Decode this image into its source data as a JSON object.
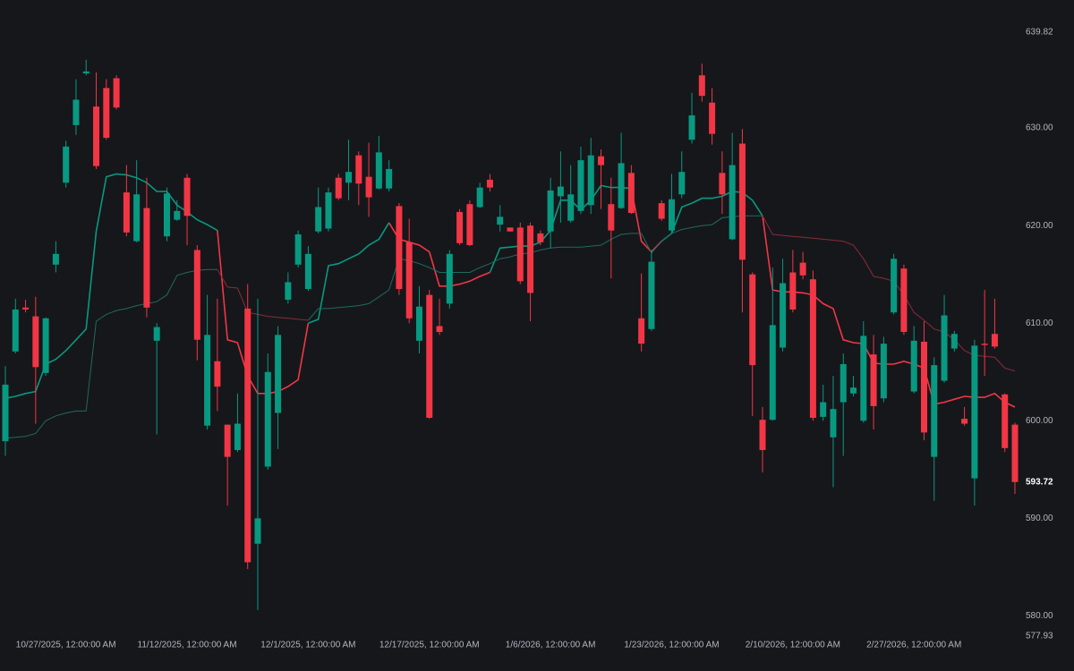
{
  "chart_data": {
    "type": "candlestick",
    "up_color": "#089981",
    "down_color": "#f23645",
    "grid": false,
    "categories": [
      null,
      null,
      null,
      null,
      null,
      null,
      "10/27/2025, 12:00:00 AM",
      null,
      null,
      null,
      null,
      null,
      null,
      null,
      null,
      null,
      null,
      null,
      "11/12/2025, 12:00:00 AM",
      null,
      null,
      null,
      null,
      null,
      null,
      null,
      null,
      null,
      null,
      null,
      "12/1/2025, 12:00:00 AM",
      null,
      null,
      null,
      null,
      null,
      null,
      null,
      null,
      null,
      null,
      null,
      "12/17/2025, 12:00:00 AM",
      null,
      null,
      null,
      null,
      null,
      null,
      null,
      null,
      null,
      null,
      null,
      "1/6/2026, 12:00:00 AM",
      null,
      null,
      null,
      null,
      null,
      null,
      null,
      null,
      null,
      null,
      null,
      "1/23/2026, 12:00:00 AM",
      null,
      null,
      null,
      null,
      null,
      null,
      null,
      null,
      null,
      null,
      null,
      "2/10/2026, 12:00:00 AM",
      null,
      null,
      null,
      null,
      null,
      null,
      null,
      null,
      null,
      null,
      null,
      "2/27/2026, 12:00:00 AM",
      null,
      null,
      null,
      null,
      null,
      null,
      null,
      null,
      null,
      null
    ],
    "open": [
      597.9,
      607.1,
      611.6,
      610.7,
      604.9,
      616.0,
      624.4,
      630.3,
      635.6,
      632.2,
      634.1,
      635.1,
      623.4,
      618.4,
      621.8,
      608.2,
      618.9,
      620.6,
      624.9,
      617.5,
      599.5,
      606.1,
      599.6,
      597.0,
      611.5,
      587.4,
      595.3,
      600.8,
      612.4,
      616.0,
      613.5,
      619.4,
      619.7,
      624.9,
      624.4,
      627.2,
      625.0,
      623.8,
      623.8,
      622.0,
      618.3,
      608.2,
      612.9,
      609.7,
      612.0,
      621.4,
      622.2,
      621.9,
      624.7,
      620.1,
      619.8,
      619.8,
      620.0,
      619.2,
      619.4,
      623.0,
      620.5,
      621.5,
      622.1,
      627.1,
      622.2,
      621.8,
      625.4,
      610.5,
      609.4,
      622.3,
      619.5,
      623.2,
      628.8,
      635.4,
      632.6,
      625.4,
      618.6,
      628.4,
      615.0,
      600.1,
      600.1,
      607.5,
      615.2,
      616.2,
      614.5,
      600.4,
      598.3,
      601.9,
      602.8,
      600.0,
      606.8,
      602.3,
      611.1,
      615.6,
      603.0,
      608.1,
      596.3,
      604.1,
      607.4,
      600.2,
      594.1,
      607.9,
      608.9,
      602.7,
      599.6
    ],
    "high": [
      605.6,
      612.5,
      612.4,
      612.7,
      610.6,
      618.4,
      628.7,
      635.0,
      637.0,
      635.7,
      635.0,
      635.4,
      626.2,
      626.7,
      624.9,
      610.0,
      623.9,
      622.6,
      625.3,
      618.0,
      612.9,
      612.5,
      599.6,
      602.8,
      614.0,
      612.5,
      606.9,
      609.7,
      615.2,
      619.5,
      617.9,
      623.9,
      623.9,
      625.3,
      628.8,
      627.6,
      628.5,
      629.2,
      626.7,
      622.3,
      620.7,
      613.8,
      613.4,
      612.5,
      617.5,
      621.7,
      622.6,
      624.4,
      625.3,
      622.1,
      619.8,
      620.3,
      620.3,
      619.5,
      624.9,
      627.6,
      626.2,
      628.1,
      629.0,
      627.8,
      624.9,
      629.5,
      626.2,
      615.1,
      617.5,
      622.6,
      625.3,
      627.6,
      633.6,
      636.6,
      634.1,
      627.6,
      629.5,
      629.9,
      615.2,
      601.4,
      615.7,
      616.6,
      617.5,
      617.3,
      615.4,
      603.7,
      604.6,
      606.9,
      604.6,
      610.2,
      608.8,
      608.6,
      617.1,
      616.0,
      609.7,
      610.2,
      606.5,
      612.9,
      609.2,
      601.4,
      608.3,
      613.4,
      612.5,
      602.8,
      599.8
    ],
    "low": [
      596.4,
      606.9,
      611.1,
      599.7,
      604.6,
      615.2,
      623.9,
      629.3,
      635.4,
      625.8,
      628.8,
      631.9,
      618.9,
      618.3,
      610.6,
      598.6,
      618.4,
      620.5,
      618.0,
      606.2,
      599.1,
      601.0,
      591.3,
      596.8,
      584.8,
      580.6,
      595.0,
      597.1,
      612.0,
      615.7,
      613.3,
      619.2,
      619.4,
      622.6,
      622.6,
      622.1,
      620.9,
      623.7,
      623.5,
      612.9,
      610.0,
      606.9,
      600.2,
      608.8,
      611.5,
      618.0,
      617.9,
      621.8,
      623.5,
      619.4,
      619.4,
      614.0,
      610.2,
      618.0,
      617.7,
      620.3,
      620.3,
      621.2,
      621.2,
      621.7,
      614.6,
      621.7,
      621.2,
      607.1,
      609.2,
      620.5,
      619.2,
      622.8,
      628.4,
      632.7,
      628.3,
      621.2,
      618.5,
      611.1,
      600.5,
      594.7,
      600.0,
      607.1,
      611.1,
      614.5,
      600.0,
      600.0,
      593.2,
      596.4,
      602.5,
      599.8,
      599.1,
      601.9,
      610.9,
      608.8,
      602.8,
      598.0,
      591.8,
      603.9,
      607.1,
      599.5,
      591.3,
      604.6,
      607.4,
      596.8,
      592.5
    ],
    "close": [
      603.7,
      611.4,
      611.4,
      605.5,
      610.5,
      617.1,
      628.1,
      632.9,
      635.8,
      626.1,
      629.0,
      632.1,
      619.3,
      623.2,
      611.6,
      609.6,
      623.3,
      621.5,
      621.0,
      608.3,
      608.8,
      603.5,
      596.3,
      599.7,
      585.5,
      590.0,
      605.0,
      608.8,
      614.2,
      619.1,
      617.1,
      621.9,
      623.4,
      622.8,
      625.5,
      624.3,
      622.9,
      627.5,
      625.8,
      613.5,
      610.5,
      611.7,
      600.3,
      609.1,
      617.1,
      618.2,
      618.0,
      623.9,
      623.9,
      620.9,
      619.4,
      614.3,
      613.1,
      618.3,
      623.6,
      624.0,
      623.2,
      626.7,
      627.2,
      626.2,
      619.5,
      626.4,
      621.3,
      607.9,
      616.3,
      620.7,
      622.7,
      625.5,
      631.3,
      633.3,
      629.4,
      623.2,
      626.2,
      616.5,
      605.7,
      597.0,
      609.8,
      614.1,
      611.4,
      614.9,
      600.3,
      601.9,
      601.2,
      605.8,
      603.4,
      608.7,
      601.5,
      607.9,
      616.6,
      609.1,
      608.2,
      598.8,
      605.7,
      610.8,
      608.9,
      599.7,
      607.7,
      607.8,
      607.6,
      597.2,
      593.72
    ],
    "series": [
      {
        "color": "#089981",
        "width": 1.6,
        "values": [
          602.3,
          602.5,
          602.8,
          603.0,
          605.8,
          606.3,
          607.2,
          608.3,
          609.4,
          619.4,
          625.0,
          625.3,
          625.2,
          624.9,
          624.4,
          623.5,
          623.5,
          622.1,
          621.4,
          620.6,
          620.1,
          619.5,
          null,
          null,
          null,
          null,
          null,
          null,
          null,
          null,
          610.0,
          610.4,
          615.9,
          616.1,
          616.6,
          617.1,
          618.0,
          618.6,
          620.3,
          null,
          null,
          null,
          null,
          null,
          null,
          null,
          null,
          null,
          615.2,
          617.7,
          617.8,
          617.9,
          617.9,
          618.3,
          619.5,
          622.6,
          622.6,
          621.6,
          622.6,
          624.1,
          623.9,
          623.9,
          623.8,
          null,
          null,
          618.4,
          619.2,
          621.9,
          622.3,
          622.8,
          622.8,
          623.0,
          623.5,
          623.4,
          622.6,
          621.0,
          null,
          null,
          null,
          null,
          null,
          null,
          null,
          null,
          null,
          null,
          null,
          null,
          null,
          null,
          null,
          null,
          null,
          null,
          null,
          null,
          null,
          null,
          null,
          null,
          null
        ]
      },
      {
        "color": "#f23645",
        "width": 1.6,
        "values": [
          null,
          null,
          null,
          null,
          null,
          null,
          null,
          null,
          null,
          null,
          null,
          null,
          null,
          null,
          null,
          null,
          null,
          null,
          null,
          null,
          null,
          619.5,
          608.3,
          608.0,
          604.6,
          602.8,
          602.8,
          603.0,
          603.5,
          604.2,
          610.0,
          null,
          null,
          null,
          null,
          null,
          null,
          null,
          620.3,
          618.6,
          618.3,
          618.0,
          617.3,
          613.8,
          613.8,
          614.0,
          614.3,
          614.8,
          615.2,
          null,
          null,
          null,
          null,
          null,
          null,
          null,
          null,
          null,
          null,
          null,
          null,
          null,
          623.8,
          618.4,
          617.3,
          618.4,
          null,
          null,
          null,
          null,
          null,
          null,
          null,
          null,
          null,
          621.0,
          613.4,
          613.2,
          613.2,
          613.1,
          612.9,
          612.0,
          611.5,
          608.3,
          608.0,
          607.9,
          605.9,
          605.8,
          605.8,
          606.1,
          605.8,
          605.4,
          601.7,
          601.9,
          602.2,
          602.5,
          602.4,
          602.4,
          602.8,
          601.9,
          601.4
        ]
      },
      {
        "color": "#1d6b60",
        "width": 1,
        "values": [
          598.2,
          598.3,
          598.4,
          598.7,
          600.0,
          600.5,
          600.8,
          601.0,
          601.0,
          610.2,
          610.9,
          611.3,
          611.5,
          611.8,
          612.0,
          612.2,
          612.9,
          614.9,
          615.2,
          615.4,
          615.5,
          615.5,
          null,
          null,
          null,
          null,
          null,
          null,
          null,
          null,
          610.3,
          611.5,
          611.5,
          611.6,
          611.7,
          611.8,
          612.0,
          612.7,
          613.4,
          616.6,
          616.4,
          616.1,
          615.7,
          615.2,
          615.2,
          615.2,
          615.2,
          615.7,
          616.1,
          616.6,
          616.8,
          617.1,
          617.2,
          617.5,
          617.7,
          617.8,
          617.8,
          617.8,
          617.9,
          618.0,
          618.6,
          619.1,
          619.2,
          619.2,
          617.2,
          618.4,
          619.2,
          619.6,
          619.8,
          620.0,
          620.1,
          620.8,
          620.9,
          621.0,
          621.0,
          621.0,
          null,
          null,
          null,
          null,
          null,
          null,
          null,
          null,
          null,
          null,
          null,
          null,
          null,
          null,
          null,
          null,
          null,
          null,
          null,
          null,
          null,
          null,
          null,
          null,
          null
        ]
      },
      {
        "color": "#8a2c35",
        "width": 1,
        "values": [
          null,
          null,
          null,
          null,
          null,
          null,
          null,
          null,
          null,
          null,
          null,
          null,
          null,
          null,
          null,
          null,
          null,
          null,
          null,
          null,
          null,
          615.5,
          613.7,
          613.6,
          611.1,
          610.9,
          610.7,
          610.6,
          610.5,
          610.4,
          610.3,
          null,
          null,
          null,
          null,
          null,
          null,
          null,
          null,
          null,
          null,
          null,
          null,
          null,
          null,
          null,
          null,
          null,
          null,
          null,
          null,
          null,
          null,
          null,
          null,
          null,
          null,
          null,
          null,
          null,
          null,
          null,
          null,
          null,
          null,
          null,
          null,
          null,
          null,
          null,
          null,
          null,
          null,
          null,
          null,
          621.0,
          619.1,
          619.0,
          618.9,
          618.8,
          618.7,
          618.6,
          618.5,
          618.4,
          618.0,
          616.6,
          614.8,
          614.6,
          614.3,
          612.9,
          611.1,
          610.3,
          609.4,
          609.1,
          608.3,
          607.2,
          606.7,
          606.6,
          606.5,
          605.4,
          605.1
        ]
      }
    ],
    "ylim": [
      577.93,
      639.82
    ],
    "yticks": [
      577.93,
      {
        "value": 580,
        "label": "580.00"
      },
      {
        "value": 590,
        "label": "590.00"
      },
      {
        "value": 600,
        "label": "600.00"
      },
      {
        "value": 610,
        "label": "610.00"
      },
      {
        "value": 620,
        "label": "620.00"
      },
      {
        "value": 630,
        "label": "630.00"
      },
      639.82
    ]
  }
}
